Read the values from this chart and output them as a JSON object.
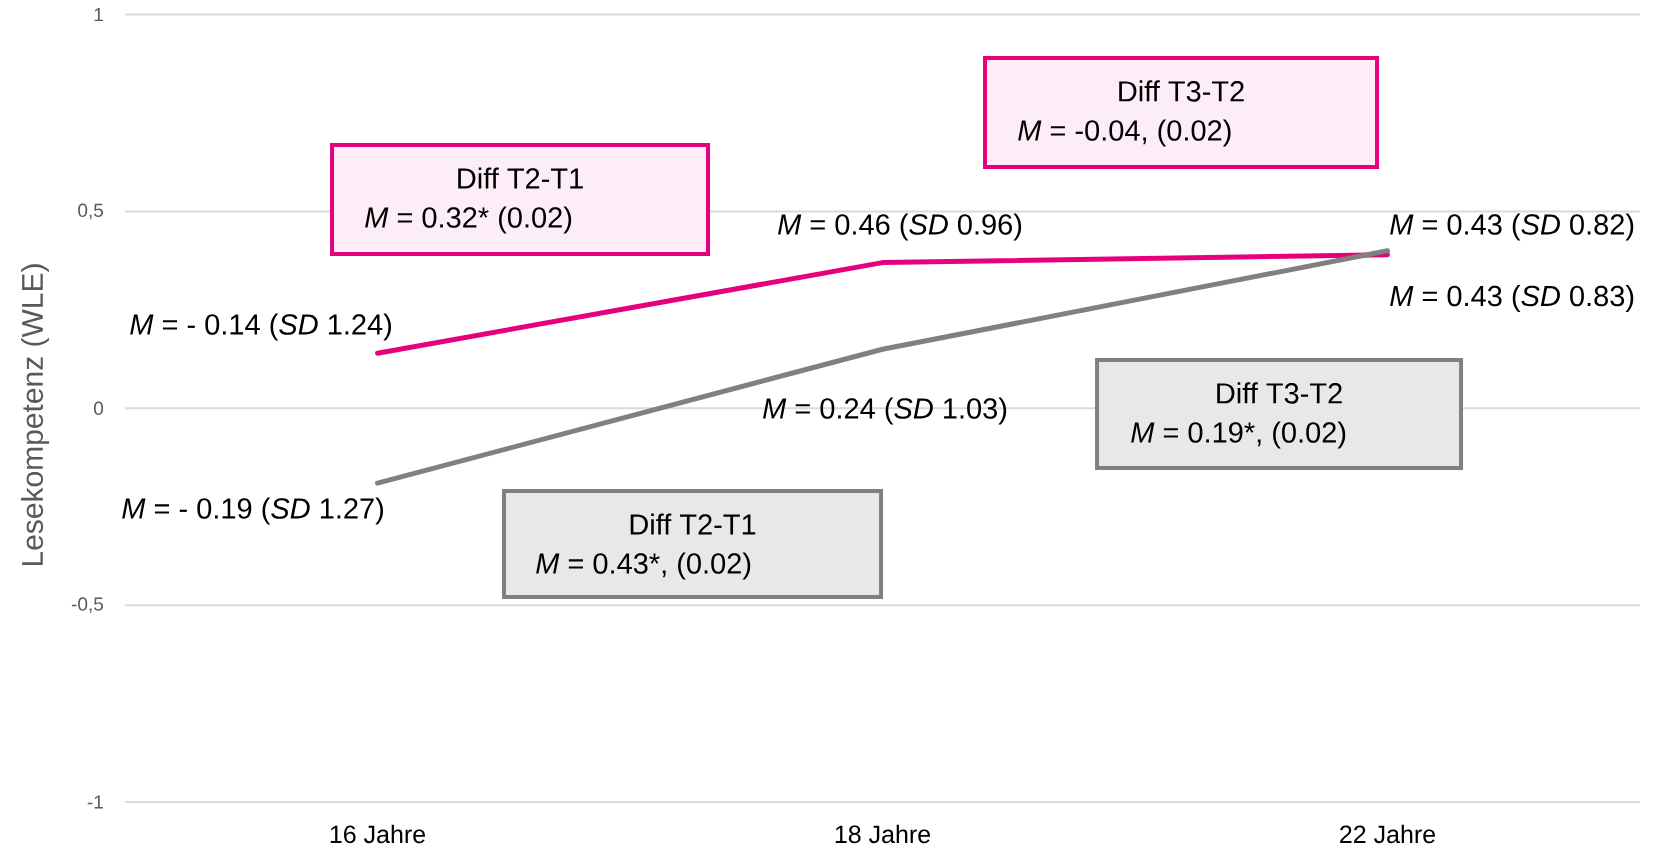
{
  "chart_data": {
    "type": "line",
    "categories": [
      "16 Jahre",
      "18 Jahre",
      "22 Jahre"
    ],
    "ylabel": "Lesekompetenz (WLE)",
    "ylim": [
      -1,
      1
    ],
    "yticks": [
      -1,
      {
        "value": -0.5,
        "label": "-0,5"
      },
      0,
      {
        "value": 0.5,
        "label": "0,5"
      },
      1
    ],
    "grid": "y",
    "series": [
      {
        "color": "#e6007e",
        "values": [
          0.14,
          0.37,
          0.39
        ]
      },
      {
        "color": "#808080",
        "values": [
          -0.19,
          0.15,
          0.4
        ]
      }
    ],
    "annotations": [
      "*M* = - 0.14 (*SD* 1.24)",
      "*M* = - 0.19 (*SD* 1.27)",
      "*M* = 0.46 (*SD* 0.96)",
      "*M* = 0.24 (*SD* 1.03)",
      "*M* = 0.43 (*SD* 0.82)",
      "*M* = 0.43 (*SD* 0.83)",
      "Diff T2-T1",
      "*M* = 0.32* (0.02)",
      "Diff T3-T2",
      "*M* = -0.04, (0.02)",
      "Diff T2-T1",
      "*M* = 0.43*, (0.02)",
      "Diff T3-T2",
      "*M* = 0.19*, (0.02)"
    ]
  }
}
